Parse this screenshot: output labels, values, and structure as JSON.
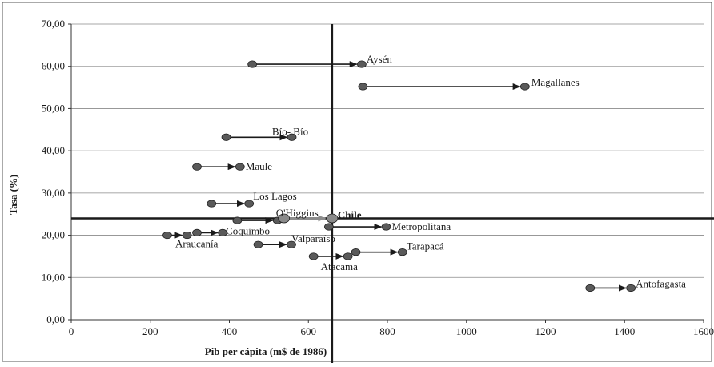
{
  "chart_data": {
    "type": "scatter",
    "title": "",
    "xlabel": "Pib per cápita (m$ de 1986)",
    "ylabel": "Tasa (%)",
    "xlim": [
      0,
      1600
    ],
    "ylim": [
      0,
      70
    ],
    "xticks": [
      "0",
      "200",
      "400",
      "600",
      "800",
      "1000",
      "1200",
      "1400",
      "1600"
    ],
    "yticks": [
      "0,00",
      "10,00",
      "20,00",
      "30,00",
      "40,00",
      "50,00",
      "60,00",
      "70,00"
    ],
    "grid": "horizontal",
    "reference_lines": {
      "x": 660,
      "y": 24
    },
    "regions": [
      {
        "name": "Aysén",
        "from": [
          458,
          60.5
        ],
        "to": [
          735,
          60.5
        ]
      },
      {
        "name": "Magallanes",
        "from": [
          738,
          55.2
        ],
        "to": [
          1148,
          55.2
        ]
      },
      {
        "name": "Bío- Bío",
        "from": [
          392,
          43.2
        ],
        "to": [
          558,
          43.2
        ]
      },
      {
        "name": "Maule",
        "from": [
          318,
          36.2
        ],
        "to": [
          427,
          36.2
        ]
      },
      {
        "name": "Los Lagos",
        "from": [
          355,
          27.5
        ],
        "to": [
          450,
          27.5
        ]
      },
      {
        "name": "O'Higgins",
        "from": [
          420,
          23.5
        ],
        "to": [
          522,
          23.5
        ]
      },
      {
        "name": "Metropolitana",
        "from": [
          652,
          22.0
        ],
        "to": [
          797,
          22.0
        ]
      },
      {
        "name": "Coquimbo",
        "from": [
          318,
          20.6
        ],
        "to": [
          383,
          20.6
        ]
      },
      {
        "name": "Araucanía",
        "from": [
          243,
          20.0
        ],
        "to": [
          293,
          20.0
        ]
      },
      {
        "name": "Valparaíso",
        "from": [
          473,
          17.8
        ],
        "to": [
          557,
          17.8
        ]
      },
      {
        "name": "Tarapacá",
        "from": [
          720,
          16.0
        ],
        "to": [
          838,
          16.0
        ]
      },
      {
        "name": "Atacama",
        "from": [
          613,
          15.0
        ],
        "to": [
          700,
          15.0
        ]
      },
      {
        "name": "Antofagasta",
        "from": [
          1313,
          7.5
        ],
        "to": [
          1416,
          7.5
        ]
      },
      {
        "name": "Chile",
        "from": [
          538,
          24.0
        ],
        "to": [
          660,
          24.0
        ]
      }
    ]
  }
}
